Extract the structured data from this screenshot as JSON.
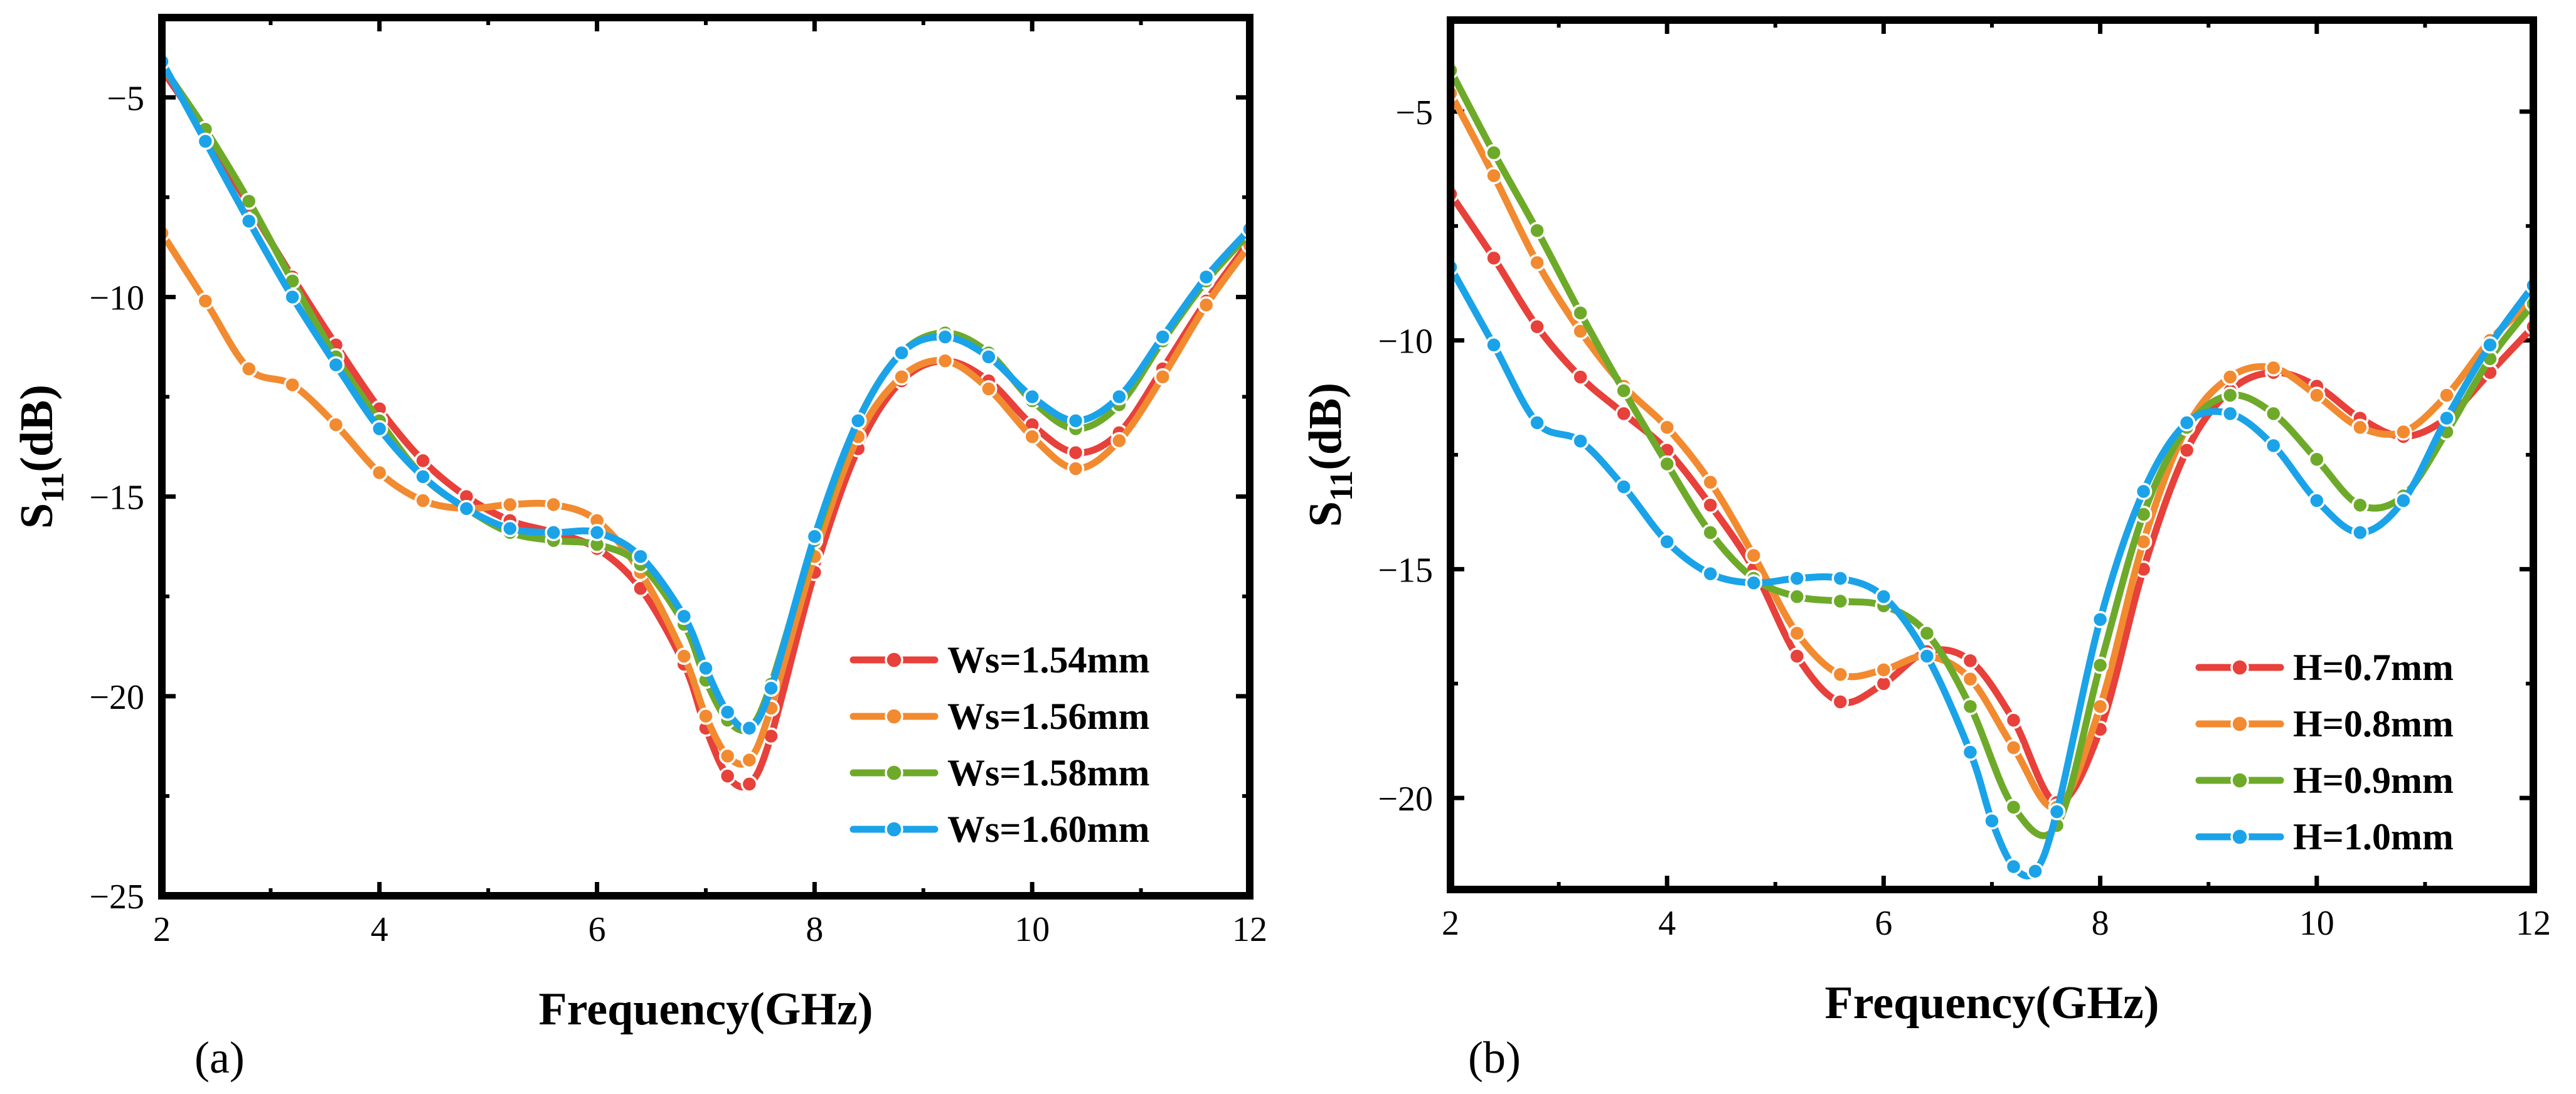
{
  "chart_data": [
    {
      "type": "line",
      "panel_label": "(a)",
      "xlabel": "Frequency(GHz)",
      "ylabel_main": "S",
      "ylabel_sub": "11",
      "ylabel_unit": "(dB)",
      "xlim": [
        2,
        12
      ],
      "ylim": [
        -25,
        -3
      ],
      "xticks": [
        2,
        4,
        6,
        8,
        10,
        12
      ],
      "yticks": [
        -25,
        -20,
        -15,
        -10,
        -5
      ],
      "xtick_labels": [
        "2",
        "4",
        "6",
        "8",
        "10",
        "12"
      ],
      "ytick_labels": [
        "−25",
        "−20",
        "−15",
        "−10",
        "−5"
      ],
      "grid": false,
      "legend_position": "bottom-right",
      "series": [
        {
          "name": "Ws=1.54mm",
          "color": "#e8403a",
          "x": [
            2.0,
            2.4,
            2.8,
            3.2,
            3.6,
            4.0,
            4.4,
            4.8,
            5.2,
            5.6,
            6.0,
            6.4,
            6.8,
            7.0,
            7.2,
            7.4,
            7.6,
            8.0,
            8.4,
            8.8,
            9.2,
            9.6,
            10.0,
            10.4,
            10.8,
            11.2,
            11.6,
            12.0
          ],
          "y": [
            -4.3,
            -5.9,
            -7.7,
            -9.5,
            -11.2,
            -12.8,
            -14.1,
            -15.0,
            -15.6,
            -15.9,
            -16.3,
            -17.3,
            -19.2,
            -20.8,
            -22.0,
            -22.2,
            -21.0,
            -16.9,
            -13.8,
            -12.1,
            -11.6,
            -12.1,
            -13.2,
            -13.9,
            -13.4,
            -11.8,
            -10.1,
            -8.6
          ]
        },
        {
          "name": "Ws=1.56mm",
          "color": "#f28a30",
          "x": [
            2.0,
            2.4,
            2.8,
            3.2,
            3.6,
            4.0,
            4.4,
            4.8,
            5.2,
            5.6,
            6.0,
            6.4,
            6.8,
            7.0,
            7.2,
            7.4,
            7.6,
            8.0,
            8.4,
            8.8,
            9.2,
            9.6,
            10.0,
            10.4,
            10.8,
            11.2,
            11.6,
            12.0
          ],
          "y": [
            -8.4,
            -10.1,
            -11.8,
            -12.2,
            -13.2,
            -14.4,
            -15.1,
            -15.3,
            -15.2,
            -15.2,
            -15.6,
            -16.9,
            -19.0,
            -20.5,
            -21.5,
            -21.6,
            -20.3,
            -16.5,
            -13.5,
            -12.0,
            -11.6,
            -12.3,
            -13.5,
            -14.3,
            -13.6,
            -12.0,
            -10.2,
            -8.7
          ]
        },
        {
          "name": "Ws=1.58mm",
          "color": "#6eaa2a",
          "x": [
            2.0,
            2.4,
            2.8,
            3.2,
            3.6,
            4.0,
            4.4,
            4.8,
            5.2,
            5.6,
            6.0,
            6.4,
            6.8,
            7.0,
            7.2,
            7.4,
            7.6,
            8.0,
            8.4,
            8.8,
            9.2,
            9.6,
            10.0,
            10.4,
            10.8,
            11.2,
            11.6,
            12.0
          ],
          "y": [
            -4.2,
            -5.8,
            -7.6,
            -9.6,
            -11.5,
            -13.1,
            -14.5,
            -15.3,
            -15.9,
            -16.1,
            -16.2,
            -16.7,
            -18.2,
            -19.6,
            -20.6,
            -20.8,
            -19.7,
            -16.1,
            -13.1,
            -11.4,
            -10.9,
            -11.4,
            -12.6,
            -13.3,
            -12.7,
            -11.1,
            -9.6,
            -8.4
          ]
        },
        {
          "name": "Ws=1.60mm",
          "color": "#1aa3e8",
          "x": [
            2.0,
            2.4,
            2.8,
            3.2,
            3.6,
            4.0,
            4.4,
            4.8,
            5.2,
            5.6,
            6.0,
            6.4,
            6.8,
            7.0,
            7.2,
            7.4,
            7.6,
            8.0,
            8.4,
            8.8,
            9.2,
            9.6,
            10.0,
            10.4,
            10.8,
            11.2,
            11.6,
            12.0
          ],
          "y": [
            -4.1,
            -6.1,
            -8.1,
            -10.0,
            -11.7,
            -13.3,
            -14.5,
            -15.3,
            -15.8,
            -15.9,
            -15.9,
            -16.5,
            -18.0,
            -19.3,
            -20.4,
            -20.8,
            -19.8,
            -16.0,
            -13.1,
            -11.4,
            -11.0,
            -11.5,
            -12.5,
            -13.1,
            -12.5,
            -11.0,
            -9.5,
            -8.3
          ]
        }
      ]
    },
    {
      "type": "line",
      "panel_label": "(b)",
      "xlabel": "Frequency(GHz)",
      "ylabel_main": "S",
      "ylabel_sub": "11",
      "ylabel_unit": "(dB)",
      "xlim": [
        2,
        12
      ],
      "ylim": [
        -22,
        -3
      ],
      "xticks": [
        2,
        4,
        6,
        8,
        10,
        12
      ],
      "yticks": [
        -20,
        -15,
        -10,
        -5
      ],
      "xtick_labels": [
        "2",
        "4",
        "6",
        "8",
        "10",
        "12"
      ],
      "ytick_labels": [
        "−20",
        "−15",
        "−10",
        "−5"
      ],
      "grid": false,
      "legend_position": "bottom-right",
      "series": [
        {
          "name": "H=0.7mm",
          "color": "#e8403a",
          "x": [
            2.0,
            2.4,
            2.8,
            3.2,
            3.6,
            4.0,
            4.4,
            4.8,
            5.2,
            5.6,
            6.0,
            6.4,
            6.8,
            7.2,
            7.6,
            8.0,
            8.4,
            8.8,
            9.2,
            9.6,
            10.0,
            10.4,
            10.8,
            11.2,
            11.6,
            12.0
          ],
          "y": [
            -6.8,
            -8.2,
            -9.7,
            -10.8,
            -11.6,
            -12.4,
            -13.6,
            -15.0,
            -16.9,
            -17.9,
            -17.5,
            -16.8,
            -17.0,
            -18.3,
            -20.1,
            -18.5,
            -15.0,
            -12.4,
            -11.1,
            -10.7,
            -11.0,
            -11.7,
            -12.1,
            -11.7,
            -10.7,
            -9.7
          ]
        },
        {
          "name": "H=0.8mm",
          "color": "#f28a30",
          "x": [
            2.0,
            2.4,
            2.8,
            3.2,
            3.6,
            4.0,
            4.4,
            4.8,
            5.2,
            5.6,
            6.0,
            6.4,
            6.8,
            7.2,
            7.6,
            8.0,
            8.4,
            8.8,
            9.2,
            9.6,
            10.0,
            10.4,
            10.8,
            11.2,
            11.6,
            12.0
          ],
          "y": [
            -4.6,
            -6.4,
            -8.3,
            -9.8,
            -11.0,
            -11.9,
            -13.1,
            -14.7,
            -16.4,
            -17.3,
            -17.2,
            -16.9,
            -17.4,
            -18.9,
            -20.2,
            -18.0,
            -14.4,
            -11.9,
            -10.8,
            -10.6,
            -11.2,
            -11.9,
            -12.0,
            -11.2,
            -10.0,
            -9.1
          ]
        },
        {
          "name": "H=0.9mm",
          "color": "#6eaa2a",
          "x": [
            2.0,
            2.4,
            2.8,
            3.2,
            3.6,
            4.0,
            4.4,
            4.8,
            5.2,
            5.6,
            6.0,
            6.4,
            6.8,
            7.2,
            7.6,
            8.0,
            8.4,
            8.8,
            9.2,
            9.6,
            10.0,
            10.4,
            10.8,
            11.2,
            11.6,
            12.0
          ],
          "y": [
            -4.1,
            -5.9,
            -7.6,
            -9.4,
            -11.1,
            -12.7,
            -14.2,
            -15.2,
            -15.6,
            -15.7,
            -15.8,
            -16.4,
            -18.0,
            -20.2,
            -20.6,
            -17.1,
            -13.8,
            -11.9,
            -11.2,
            -11.6,
            -12.6,
            -13.6,
            -13.4,
            -12.0,
            -10.4,
            -9.2
          ]
        },
        {
          "name": "H=1.0mm",
          "color": "#1aa3e8",
          "x": [
            2.0,
            2.4,
            2.8,
            3.2,
            3.6,
            4.0,
            4.4,
            4.8,
            5.2,
            5.6,
            6.0,
            6.4,
            6.8,
            7.0,
            7.2,
            7.4,
            7.6,
            8.0,
            8.4,
            8.8,
            9.2,
            9.6,
            10.0,
            10.4,
            10.8,
            11.2,
            11.6,
            12.0
          ],
          "y": [
            -8.4,
            -10.1,
            -11.8,
            -12.2,
            -13.2,
            -14.4,
            -15.1,
            -15.3,
            -15.2,
            -15.2,
            -15.6,
            -16.9,
            -19.0,
            -20.5,
            -21.5,
            -21.6,
            -20.3,
            -16.1,
            -13.3,
            -11.8,
            -11.6,
            -12.3,
            -13.5,
            -14.2,
            -13.5,
            -11.7,
            -10.1,
            -8.8
          ]
        }
      ]
    }
  ]
}
